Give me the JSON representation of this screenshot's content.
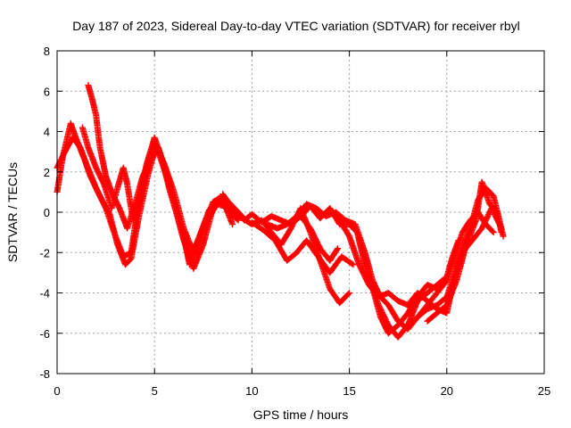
{
  "chart_data": {
    "type": "scatter",
    "title": "Day 187 of 2023, Sidereal Day-to-day VTEC variation (SDTVAR) for receiver rbyl",
    "xlabel": "GPS time / hours",
    "ylabel": "SDTVAR / TECUs",
    "xlim": [
      0,
      25
    ],
    "ylim": [
      -8,
      8
    ],
    "xticks": [
      "0",
      "5",
      "10",
      "15",
      "20",
      "25"
    ],
    "yticks": [
      "-8",
      "-6",
      "-4",
      "-2",
      "0",
      "2",
      "4",
      "6",
      "8"
    ],
    "grid": true,
    "marker": "+",
    "series_color": "#ff0000",
    "series": [
      {
        "name": "sat-track-1",
        "points": [
          [
            0.0,
            1.0
          ],
          [
            0.3,
            2.8
          ],
          [
            0.7,
            4.4
          ],
          [
            1.0,
            3.6
          ],
          [
            1.5,
            2.4
          ],
          [
            2.0,
            1.2
          ],
          [
            2.5,
            0.2
          ],
          [
            3.0,
            -1.2
          ],
          [
            3.4,
            -2.2
          ],
          [
            3.8,
            -2.0
          ],
          [
            4.2,
            0.6
          ],
          [
            4.6,
            2.4
          ],
          [
            5.0,
            3.7
          ],
          [
            5.4,
            2.6
          ],
          [
            5.8,
            1.0
          ],
          [
            6.3,
            -0.6
          ],
          [
            6.8,
            -2.4
          ],
          [
            7.3,
            -1.2
          ],
          [
            7.8,
            0.1
          ],
          [
            8.3,
            0.7
          ],
          [
            8.8,
            0.0
          ],
          [
            9.3,
            -0.4
          ]
        ]
      },
      {
        "name": "sat-track-2",
        "points": [
          [
            0.0,
            2.2
          ],
          [
            0.4,
            3.0
          ],
          [
            0.8,
            3.7
          ],
          [
            1.2,
            3.2
          ],
          [
            1.7,
            1.8
          ],
          [
            2.2,
            0.8
          ],
          [
            2.7,
            -0.1
          ],
          [
            3.1,
            -1.6
          ],
          [
            3.5,
            -2.6
          ],
          [
            3.8,
            -2.3
          ],
          [
            4.2,
            -0.2
          ],
          [
            4.7,
            2.0
          ],
          [
            5.1,
            3.3
          ],
          [
            5.6,
            1.8
          ],
          [
            6.0,
            0.4
          ],
          [
            6.5,
            -1.4
          ],
          [
            7.0,
            -2.8
          ],
          [
            7.5,
            -1.6
          ],
          [
            8.0,
            0.2
          ],
          [
            8.5,
            0.6
          ],
          [
            9.0,
            -0.6
          ]
        ]
      },
      {
        "name": "sat-track-3",
        "points": [
          [
            1.6,
            6.3
          ],
          [
            1.8,
            5.6
          ],
          [
            2.0,
            4.8
          ],
          [
            2.2,
            3.2
          ],
          [
            2.5,
            1.8
          ],
          [
            2.8,
            1.0
          ],
          [
            3.2,
            0.2
          ],
          [
            3.6,
            -0.8
          ],
          [
            4.0,
            0.4
          ],
          [
            4.4,
            1.8
          ],
          [
            4.8,
            2.6
          ],
          [
            5.2,
            3.2
          ],
          [
            5.6,
            2.0
          ],
          [
            6.0,
            0.6
          ],
          [
            6.4,
            -0.8
          ],
          [
            6.8,
            -2.6
          ],
          [
            7.2,
            -1.8
          ],
          [
            7.6,
            -0.6
          ],
          [
            8.2,
            0.4
          ],
          [
            8.6,
            0.3
          ],
          [
            9.1,
            -0.2
          ]
        ]
      },
      {
        "name": "sat-track-4",
        "points": [
          [
            1.3,
            4.2
          ],
          [
            1.6,
            3.2
          ],
          [
            2.0,
            2.2
          ],
          [
            2.4,
            1.4
          ],
          [
            2.8,
            0.2
          ],
          [
            3.1,
            1.2
          ],
          [
            3.4,
            2.2
          ],
          [
            3.6,
            1.4
          ],
          [
            3.9,
            -0.4
          ],
          [
            4.3,
            1.0
          ],
          [
            4.7,
            2.6
          ],
          [
            5.0,
            3.5
          ],
          [
            5.5,
            2.4
          ],
          [
            6.0,
            1.0
          ],
          [
            6.5,
            -0.8
          ],
          [
            7.0,
            -2.0
          ],
          [
            7.5,
            -0.8
          ],
          [
            8.0,
            0.5
          ],
          [
            8.5,
            0.8
          ],
          [
            9.0,
            0.3
          ],
          [
            9.5,
            -0.2
          ]
        ]
      },
      {
        "name": "sat-track-5",
        "points": [
          [
            8.5,
            0.9
          ],
          [
            9.0,
            0.2
          ],
          [
            9.5,
            -0.3
          ],
          [
            10.0,
            -0.6
          ],
          [
            10.5,
            -0.4
          ],
          [
            11.0,
            -1.0
          ],
          [
            11.5,
            -1.6
          ],
          [
            12.0,
            -0.8
          ],
          [
            12.5,
            0.2
          ],
          [
            13.0,
            -1.0
          ],
          [
            13.5,
            -2.4
          ],
          [
            14.0,
            -3.8
          ],
          [
            14.5,
            -4.5
          ],
          [
            15.0,
            -4.0
          ]
        ]
      },
      {
        "name": "sat-track-6",
        "points": [
          [
            9.6,
            -0.4
          ],
          [
            10.0,
            -0.1
          ],
          [
            10.5,
            -0.5
          ],
          [
            11.0,
            -0.2
          ],
          [
            11.5,
            -0.4
          ],
          [
            12.0,
            -0.6
          ],
          [
            12.5,
            -0.2
          ],
          [
            13.0,
            -0.8
          ],
          [
            13.5,
            -1.8
          ],
          [
            14.0,
            -2.4
          ],
          [
            14.4,
            -1.8
          ]
        ]
      },
      {
        "name": "sat-track-7",
        "points": [
          [
            10.0,
            -0.5
          ],
          [
            10.6,
            -0.9
          ],
          [
            11.2,
            -1.4
          ],
          [
            11.8,
            -2.4
          ],
          [
            12.3,
            -2.0
          ],
          [
            12.8,
            -1.4
          ],
          [
            13.4,
            -2.2
          ],
          [
            14.0,
            -3.0
          ],
          [
            14.6,
            -2.2
          ],
          [
            15.2,
            -2.6
          ]
        ]
      },
      {
        "name": "sat-track-8",
        "points": [
          [
            10.8,
            -0.6
          ],
          [
            11.3,
            -0.8
          ],
          [
            11.8,
            -0.6
          ],
          [
            12.3,
            -0.2
          ],
          [
            12.8,
            0.4
          ],
          [
            13.3,
            0.2
          ],
          [
            13.8,
            -0.2
          ],
          [
            14.3,
            0.0
          ],
          [
            14.8,
            -0.4
          ],
          [
            15.3,
            -0.6
          ],
          [
            15.8,
            -2.0
          ],
          [
            16.2,
            -3.4
          ],
          [
            16.6,
            -4.2
          ],
          [
            17.0,
            -4.6
          ],
          [
            17.5,
            -5.4
          ],
          [
            18.0,
            -5.8
          ],
          [
            18.5,
            -5.2
          ],
          [
            19.0,
            -4.6
          ],
          [
            19.5,
            -4.0
          ],
          [
            20.0,
            -3.4
          ],
          [
            20.4,
            -2.2
          ],
          [
            20.8,
            -1.0
          ],
          [
            21.2,
            -0.4
          ],
          [
            21.6,
            0.0
          ],
          [
            22.0,
            -0.6
          ],
          [
            22.4,
            -1.0
          ]
        ]
      },
      {
        "name": "sat-track-9",
        "points": [
          [
            12.5,
            -0.2
          ],
          [
            13.0,
            0.3
          ],
          [
            13.5,
            -0.3
          ],
          [
            14.0,
            0.2
          ],
          [
            14.5,
            -0.6
          ],
          [
            15.0,
            -0.6
          ],
          [
            15.4,
            -1.0
          ],
          [
            15.8,
            -2.6
          ],
          [
            16.2,
            -3.8
          ],
          [
            16.6,
            -5.2
          ],
          [
            17.0,
            -6.0
          ],
          [
            17.5,
            -5.6
          ],
          [
            18.0,
            -5.0
          ],
          [
            18.5,
            -4.2
          ],
          [
            19.0,
            -3.6
          ],
          [
            19.5,
            -3.8
          ],
          [
            20.0,
            -3.4
          ]
        ]
      },
      {
        "name": "sat-track-10",
        "points": [
          [
            14.5,
            -0.4
          ],
          [
            15.0,
            -1.2
          ],
          [
            15.5,
            -2.6
          ],
          [
            16.0,
            -3.6
          ],
          [
            16.5,
            -4.2
          ],
          [
            17.0,
            -4.0
          ],
          [
            17.5,
            -4.4
          ],
          [
            18.0,
            -4.6
          ],
          [
            18.5,
            -4.0
          ],
          [
            19.0,
            -4.4
          ],
          [
            19.5,
            -4.8
          ],
          [
            20.0,
            -5.0
          ],
          [
            20.4,
            -3.2
          ],
          [
            20.8,
            -2.0
          ],
          [
            21.3,
            -1.4
          ],
          [
            21.8,
            -0.8
          ],
          [
            22.3,
            0.2
          ],
          [
            22.8,
            -0.8
          ]
        ]
      },
      {
        "name": "sat-track-11",
        "points": [
          [
            16.0,
            -3.2
          ],
          [
            16.5,
            -4.6
          ],
          [
            17.0,
            -5.6
          ],
          [
            17.5,
            -6.2
          ],
          [
            18.0,
            -5.6
          ],
          [
            18.5,
            -4.4
          ],
          [
            19.0,
            -4.0
          ],
          [
            19.5,
            -3.6
          ],
          [
            20.0,
            -3.2
          ],
          [
            20.3,
            -2.2
          ],
          [
            20.6,
            -1.4
          ]
        ]
      },
      {
        "name": "sat-track-12",
        "points": [
          [
            18.0,
            -5.6
          ],
          [
            18.5,
            -5.2
          ],
          [
            19.0,
            -4.8
          ],
          [
            19.5,
            -4.6
          ],
          [
            20.0,
            -4.2
          ],
          [
            20.4,
            -3.0
          ],
          [
            20.8,
            -1.8
          ],
          [
            21.2,
            -0.8
          ],
          [
            21.6,
            0.6
          ],
          [
            22.0,
            1.2
          ],
          [
            22.4,
            0.8
          ],
          [
            22.9,
            -1.2
          ]
        ]
      },
      {
        "name": "sat-track-13",
        "points": [
          [
            19.0,
            -5.4
          ],
          [
            19.5,
            -5.0
          ],
          [
            20.0,
            -4.6
          ],
          [
            20.5,
            -3.4
          ],
          [
            21.0,
            -1.6
          ],
          [
            21.5,
            -0.4
          ],
          [
            21.8,
            1.5
          ],
          [
            22.2,
            0.4
          ],
          [
            22.6,
            0.0
          ],
          [
            22.8,
            -1.0
          ]
        ]
      }
    ]
  }
}
